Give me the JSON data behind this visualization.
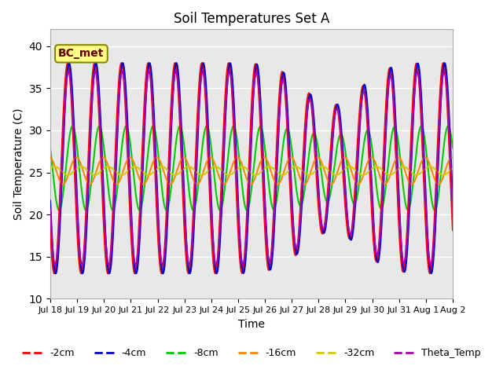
{
  "title": "Soil Temperatures Set A",
  "xlabel": "Time",
  "ylabel": "Soil Temperature (C)",
  "ylim": [
    10,
    42
  ],
  "yticks": [
    10,
    15,
    20,
    25,
    30,
    35,
    40
  ],
  "xtick_labels": [
    "Jul 18",
    "Jul 19",
    "Jul 20",
    "Jul 21",
    "Jul 22",
    "Jul 23",
    "Jul 24",
    "Jul 25",
    "Jul 26",
    "Jul 27",
    "Jul 28",
    "Jul 29",
    "Jul 30",
    "Jul 31",
    "Aug 1",
    "Aug 2"
  ],
  "series": {
    "-2cm": {
      "color": "#ff0000",
      "lw": 1.5
    },
    "-4cm": {
      "color": "#0000cc",
      "lw": 1.5
    },
    "-8cm": {
      "color": "#00cc00",
      "lw": 1.5
    },
    "-16cm": {
      "color": "#ff8800",
      "lw": 1.5
    },
    "-32cm": {
      "color": "#cccc00",
      "lw": 1.5
    },
    "Theta_Temp": {
      "color": "#aa00aa",
      "lw": 1.5
    }
  },
  "legend_label": "BC_met",
  "legend_facecolor": "#ffff88",
  "legend_edgecolor": "#888800",
  "bg_color": "#e8e8e8",
  "fig_facecolor": "#ffffff"
}
